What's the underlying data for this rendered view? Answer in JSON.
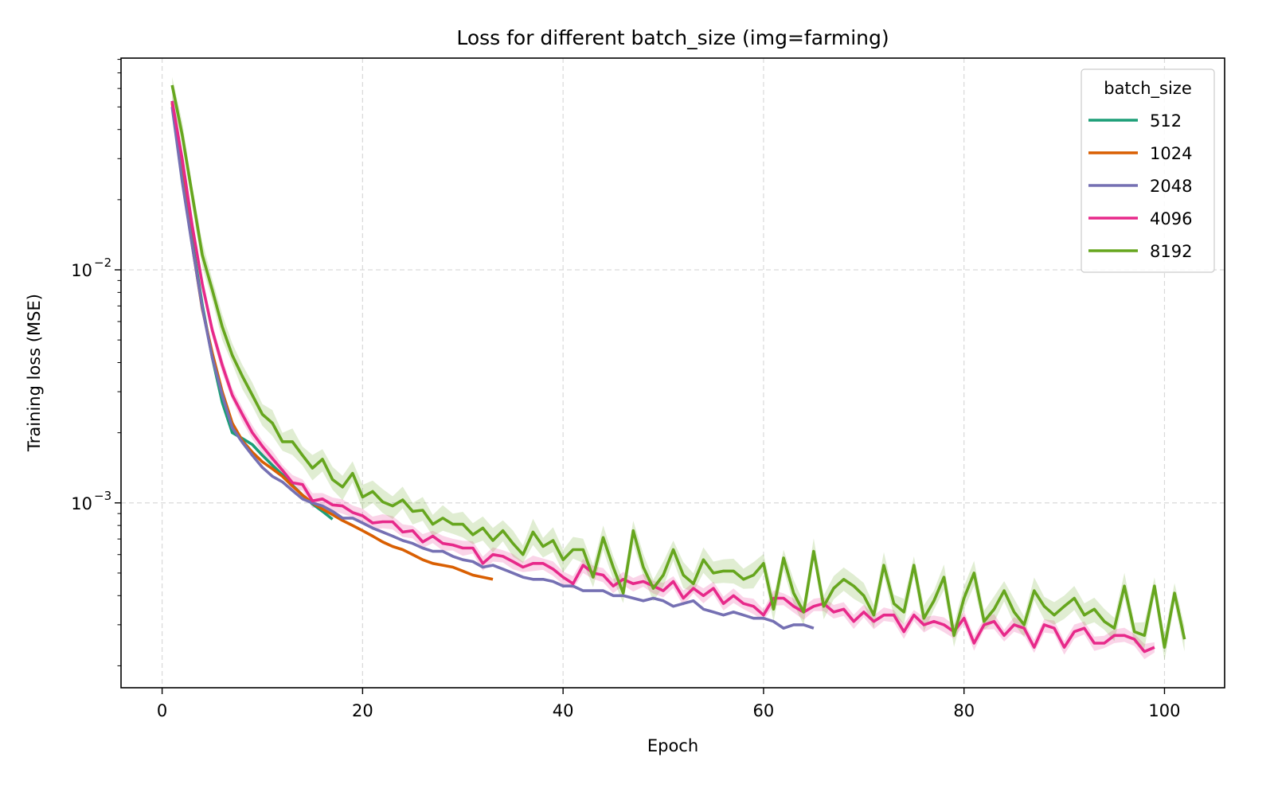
{
  "chart_data": {
    "type": "line",
    "title": "Loss for different batch_size (img=farming)",
    "xlabel": "Epoch",
    "ylabel": "Training loss (MSE)",
    "xscale": "linear",
    "yscale": "log",
    "xlim": [
      -4.1,
      106
    ],
    "ylim": [
      0.000161,
      0.081
    ],
    "xticks": [
      0,
      20,
      40,
      60,
      80,
      100
    ],
    "xtick_labels": [
      "0",
      "20",
      "40",
      "60",
      "80",
      "100"
    ],
    "yticks_major": [
      0.001,
      0.01
    ],
    "ytick_labels": [
      {
        "base": "10",
        "exp": "−3"
      },
      {
        "base": "10",
        "exp": "−2"
      }
    ],
    "grid": true,
    "legend": {
      "title": "batch_size",
      "placement": "top-right"
    },
    "series": [
      {
        "name": "512",
        "color": "#1b9e77",
        "start_epoch": 1,
        "values": [
          0.053,
          0.026,
          0.0133,
          0.0071,
          0.0042,
          0.0027,
          0.002,
          0.00189,
          0.00178,
          0.0016,
          0.00145,
          0.00132,
          0.00119,
          0.00108,
          0.00099,
          0.00092,
          0.00085
        ],
        "band": 0.0
      },
      {
        "name": "1024",
        "color": "#d95f02",
        "start_epoch": 1,
        "values": [
          0.052,
          0.025,
          0.0128,
          0.0068,
          0.0044,
          0.003,
          0.0022,
          0.00185,
          0.00165,
          0.0015,
          0.0014,
          0.0013,
          0.00118,
          0.00108,
          0.001,
          0.00094,
          0.00089,
          0.00084,
          0.0008,
          0.00076,
          0.00072,
          0.00068,
          0.00065,
          0.00063,
          0.0006,
          0.00057,
          0.00055,
          0.00054,
          0.00053,
          0.00051,
          0.00049,
          0.00048,
          0.00047
        ],
        "band": 0.0
      },
      {
        "name": "2048",
        "color": "#7570b3",
        "start_epoch": 1,
        "values": [
          0.05,
          0.024,
          0.0127,
          0.0069,
          0.0042,
          0.0029,
          0.0021,
          0.00182,
          0.0016,
          0.00142,
          0.0013,
          0.00123,
          0.00113,
          0.00104,
          0.001,
          0.00097,
          0.00092,
          0.00086,
          0.00086,
          0.00082,
          0.00078,
          0.00075,
          0.00072,
          0.00069,
          0.00067,
          0.00064,
          0.00062,
          0.00062,
          0.00059,
          0.00057,
          0.00056,
          0.00053,
          0.00054,
          0.00052,
          0.0005,
          0.00048,
          0.00047,
          0.00047,
          0.00046,
          0.00044,
          0.00044,
          0.00042,
          0.00042,
          0.00042,
          0.0004,
          0.0004,
          0.00039,
          0.00038,
          0.00039,
          0.00038,
          0.00036,
          0.00037,
          0.00038,
          0.00035,
          0.00034,
          0.00033,
          0.00034,
          0.00033,
          0.00032,
          0.00032,
          0.00031,
          0.00029,
          0.0003,
          0.0003,
          0.00029
        ],
        "band": 0.0
      },
      {
        "name": "4096",
        "color": "#e7298a",
        "start_epoch": 1,
        "values": [
          0.053,
          0.03,
          0.0155,
          0.0087,
          0.0055,
          0.0039,
          0.0029,
          0.0024,
          0.002,
          0.00175,
          0.00155,
          0.00138,
          0.00122,
          0.0012,
          0.00102,
          0.00104,
          0.00098,
          0.00097,
          0.00091,
          0.00088,
          0.00082,
          0.00083,
          0.00083,
          0.00075,
          0.00076,
          0.00068,
          0.00072,
          0.00067,
          0.00066,
          0.00064,
          0.00064,
          0.00055,
          0.0006,
          0.00059,
          0.00056,
          0.00053,
          0.00055,
          0.00055,
          0.00052,
          0.00048,
          0.00045,
          0.00054,
          0.0005,
          0.00049,
          0.00044,
          0.00047,
          0.00045,
          0.00046,
          0.00044,
          0.00042,
          0.00046,
          0.00039,
          0.00043,
          0.0004,
          0.00043,
          0.00037,
          0.0004,
          0.00037,
          0.00036,
          0.00033,
          0.00039,
          0.00039,
          0.00036,
          0.00034,
          0.00036,
          0.00037,
          0.00034,
          0.00035,
          0.00031,
          0.00034,
          0.00031,
          0.00033,
          0.00033,
          0.00028,
          0.00033,
          0.0003,
          0.00031,
          0.0003,
          0.00028,
          0.00032,
          0.00025,
          0.0003,
          0.00031,
          0.00027,
          0.0003,
          0.00029,
          0.00024,
          0.0003,
          0.00029,
          0.00024,
          0.00028,
          0.00029,
          0.00025,
          0.00025,
          0.00027,
          0.00027,
          0.00026,
          0.00023,
          0.00024
        ],
        "band": 0.08
      },
      {
        "name": "8192",
        "color": "#66a61e",
        "start_epoch": 1,
        "values": [
          0.062,
          0.038,
          0.021,
          0.0116,
          0.0082,
          0.0057,
          0.0043,
          0.0035,
          0.0029,
          0.0024,
          0.0022,
          0.00183,
          0.00183,
          0.0016,
          0.00141,
          0.00154,
          0.00126,
          0.00117,
          0.00134,
          0.00106,
          0.00112,
          0.00101,
          0.00097,
          0.00103,
          0.00092,
          0.00093,
          0.00081,
          0.00086,
          0.00081,
          0.00081,
          0.00073,
          0.00078,
          0.00069,
          0.00076,
          0.00067,
          0.0006,
          0.00075,
          0.00065,
          0.00069,
          0.00057,
          0.00063,
          0.00063,
          0.00048,
          0.00071,
          0.00053,
          0.00041,
          0.00076,
          0.00053,
          0.00043,
          0.00049,
          0.00063,
          0.00049,
          0.00045,
          0.00057,
          0.0005,
          0.00051,
          0.00051,
          0.00047,
          0.00049,
          0.00055,
          0.00035,
          0.00058,
          0.00041,
          0.00034,
          0.00062,
          0.00036,
          0.00043,
          0.00047,
          0.00044,
          0.0004,
          0.00033,
          0.00054,
          0.00037,
          0.00034,
          0.00054,
          0.00032,
          0.00038,
          0.00048,
          0.00027,
          0.00039,
          0.0005,
          0.00031,
          0.00035,
          0.00042,
          0.00034,
          0.0003,
          0.00042,
          0.00036,
          0.00033,
          0.00036,
          0.00039,
          0.00033,
          0.00035,
          0.00031,
          0.00029,
          0.00044,
          0.00028,
          0.00027,
          0.00044,
          0.00024,
          0.00041,
          0.00026
        ],
        "band": 0.14
      }
    ]
  }
}
